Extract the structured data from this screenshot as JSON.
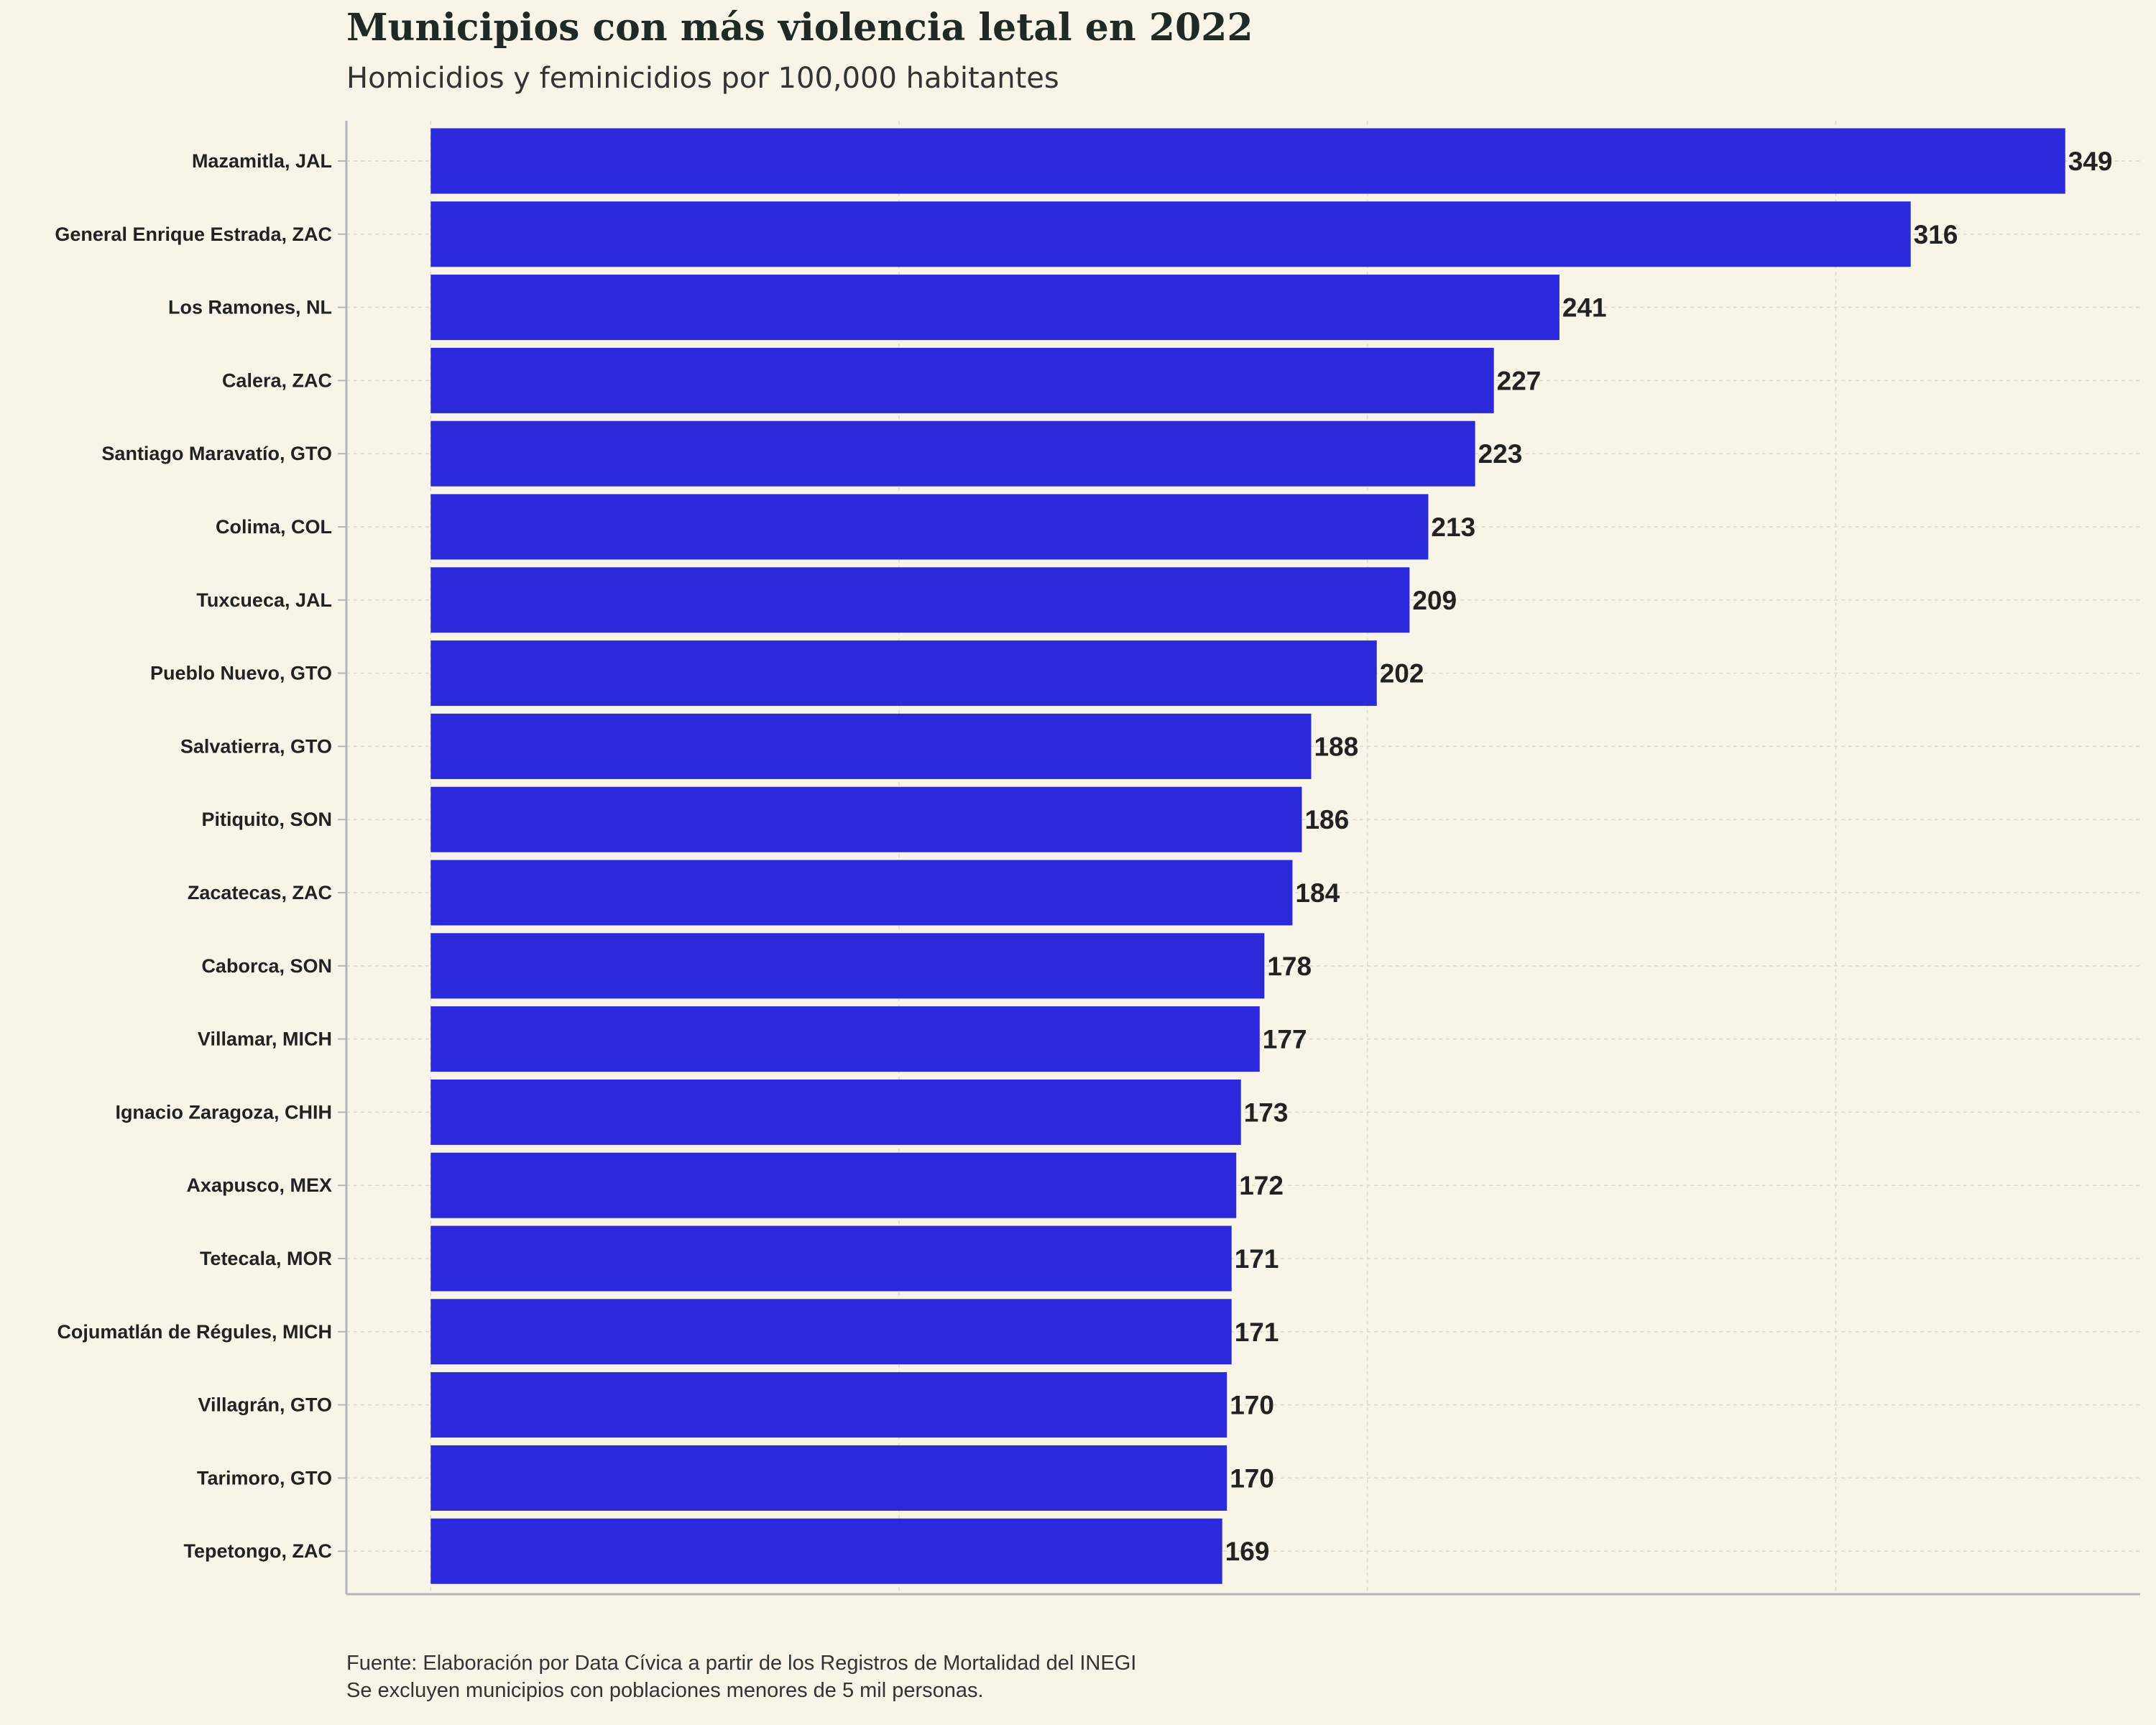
{
  "colors": {
    "background": "#f8f4e8",
    "bar": "#2a2adb",
    "text": "#222222",
    "grid": "#dcd8cc",
    "axis": "#b5b5b5"
  },
  "chart_data": {
    "type": "bar",
    "orientation": "horizontal",
    "title": "Municipios con más violencia letal en 2022",
    "subtitle": "Homicidios y feminicidios por 100,000 habitantes",
    "xlabel": "",
    "ylabel": "",
    "xlim": [
      -18,
      365
    ],
    "grid": true,
    "legend": "none",
    "categories": [
      "Mazamitla, JAL",
      "General Enrique Estrada, ZAC",
      "Los Ramones, NL",
      "Calera, ZAC",
      "Santiago Maravatío, GTO",
      "Colima, COL",
      "Tuxcueca, JAL",
      "Pueblo Nuevo, GTO",
      "Salvatierra, GTO",
      "Pitiquito, SON",
      "Zacatecas, ZAC",
      "Caborca, SON",
      "Villamar, MICH",
      "Ignacio Zaragoza, CHIH",
      "Axapusco, MEX",
      "Tetecala, MOR",
      "Cojumatlán de Régules, MICH",
      "Villagrán, GTO",
      "Tarimoro, GTO",
      "Tepetongo, ZAC"
    ],
    "values": [
      349,
      316,
      241,
      227,
      223,
      213,
      209,
      202,
      188,
      186,
      184,
      178,
      177,
      173,
      172,
      171,
      171,
      170,
      170,
      169
    ],
    "caption": [
      "Fuente: Elaboración por Data Cívica a partir de los Registros de Mortalidad del INEGI",
      "Se excluyen municipios con poblaciones menores de 5 mil personas."
    ]
  }
}
